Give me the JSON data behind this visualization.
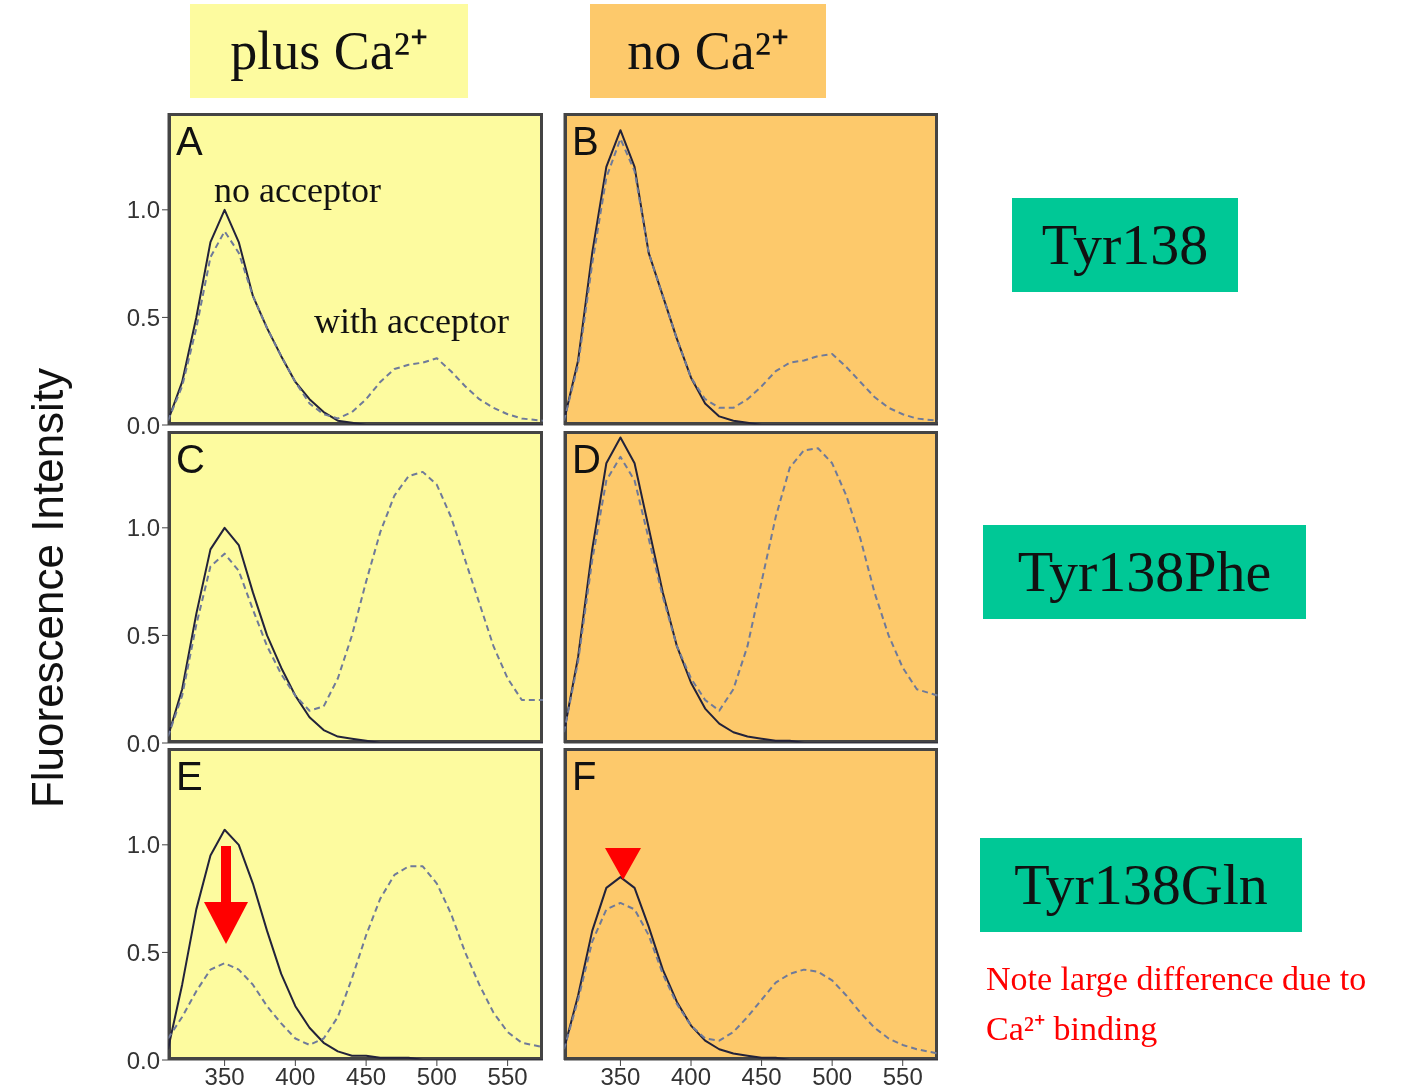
{
  "chart_data": [
    {
      "type": "line",
      "title": "plus Ca²⁺",
      "ylabel": "Fluorescence Intensity",
      "annotations": [
        "A",
        "no acceptor",
        "with acceptor"
      ],
      "x": [
        310,
        320,
        330,
        340,
        350,
        360,
        370,
        380,
        390,
        400,
        410,
        420,
        430,
        440,
        450,
        460,
        470,
        480,
        490,
        500,
        510,
        520,
        530,
        540,
        550,
        560,
        575
      ],
      "xlim": [
        310,
        575
      ],
      "ylim": [
        0,
        1.45
      ],
      "xticks": [
        350,
        400,
        450,
        500,
        550
      ],
      "yticks": [
        {
          "value": 0,
          "label": "0.0"
        },
        {
          "value": 0.5,
          "label": "0.5"
        },
        {
          "value": 1,
          "label": "1.0"
        }
      ],
      "tick_labels": "y",
      "series": [
        {
          "color": "#22223a",
          "line_style": "solid",
          "values": [
            0.02,
            0.2,
            0.5,
            0.85,
            1.0,
            0.85,
            0.6,
            0.45,
            0.32,
            0.2,
            0.12,
            0.06,
            0.02,
            0.01,
            0,
            0,
            0,
            0,
            0,
            0,
            0,
            0,
            0,
            0,
            0,
            0,
            0
          ]
        },
        {
          "color": "#6f7a99",
          "line_style": "dashed",
          "values": [
            0.02,
            0.18,
            0.45,
            0.78,
            0.9,
            0.8,
            0.6,
            0.45,
            0.32,
            0.2,
            0.1,
            0.05,
            0.03,
            0.06,
            0.12,
            0.2,
            0.26,
            0.28,
            0.29,
            0.31,
            0.25,
            0.18,
            0.12,
            0.08,
            0.05,
            0.03,
            0.02
          ]
        }
      ]
    },
    {
      "type": "line",
      "title": "no Ca²⁺",
      "annotations": [
        "B",
        "Tyr138"
      ],
      "x": [
        310,
        320,
        330,
        340,
        350,
        360,
        370,
        380,
        390,
        400,
        410,
        420,
        430,
        440,
        450,
        460,
        470,
        480,
        490,
        500,
        510,
        520,
        530,
        540,
        550,
        560,
        575
      ],
      "xlim": [
        310,
        575
      ],
      "ylim": [
        0,
        1.45
      ],
      "xticks": [
        350,
        400,
        450,
        500,
        550
      ],
      "tick_labels": false,
      "series": [
        {
          "color": "#22223a",
          "line_style": "solid",
          "values": [
            0.02,
            0.3,
            0.8,
            1.2,
            1.37,
            1.2,
            0.8,
            0.6,
            0.4,
            0.22,
            0.1,
            0.04,
            0.02,
            0.01,
            0,
            0,
            0,
            0,
            0,
            0,
            0,
            0,
            0,
            0,
            0,
            0,
            0
          ]
        },
        {
          "color": "#6f7a99",
          "line_style": "dashed",
          "values": [
            0.02,
            0.28,
            0.75,
            1.15,
            1.33,
            1.18,
            0.8,
            0.6,
            0.4,
            0.22,
            0.12,
            0.08,
            0.08,
            0.12,
            0.18,
            0.25,
            0.29,
            0.3,
            0.32,
            0.33,
            0.27,
            0.2,
            0.13,
            0.08,
            0.05,
            0.03,
            0.02
          ]
        }
      ]
    },
    {
      "type": "line",
      "annotations": [
        "C"
      ],
      "x": [
        310,
        320,
        330,
        340,
        350,
        360,
        370,
        380,
        390,
        400,
        410,
        420,
        430,
        440,
        450,
        460,
        470,
        480,
        490,
        500,
        510,
        520,
        530,
        540,
        550,
        560,
        575
      ],
      "xlim": [
        310,
        575
      ],
      "ylim": [
        0,
        1.45
      ],
      "xticks": [
        350,
        400,
        450,
        500,
        550
      ],
      "yticks": [
        {
          "value": 0,
          "label": "0.0"
        },
        {
          "value": 0.5,
          "label": "0.5"
        },
        {
          "value": 1,
          "label": "1.0"
        }
      ],
      "tick_labels": "y",
      "series": [
        {
          "color": "#22223a",
          "line_style": "solid",
          "values": [
            0.03,
            0.25,
            0.6,
            0.9,
            1.0,
            0.92,
            0.7,
            0.5,
            0.35,
            0.22,
            0.12,
            0.06,
            0.03,
            0.02,
            0.01,
            0,
            0,
            0,
            0,
            0,
            0,
            0,
            0,
            0,
            0,
            0,
            0
          ]
        },
        {
          "color": "#6f7a99",
          "line_style": "dashed",
          "values": [
            0.03,
            0.22,
            0.55,
            0.82,
            0.88,
            0.8,
            0.62,
            0.45,
            0.32,
            0.22,
            0.15,
            0.17,
            0.3,
            0.5,
            0.75,
            0.98,
            1.15,
            1.24,
            1.26,
            1.2,
            1.05,
            0.85,
            0.65,
            0.45,
            0.3,
            0.2,
            0.2
          ]
        }
      ]
    },
    {
      "type": "line",
      "annotations": [
        "D",
        "Tyr138Phe"
      ],
      "x": [
        310,
        320,
        330,
        340,
        350,
        360,
        370,
        380,
        390,
        400,
        410,
        420,
        430,
        440,
        450,
        460,
        470,
        480,
        490,
        500,
        510,
        520,
        530,
        540,
        550,
        560,
        575
      ],
      "xlim": [
        310,
        575
      ],
      "ylim": [
        0,
        1.45
      ],
      "xticks": [
        350,
        400,
        450,
        500,
        550
      ],
      "tick_labels": false,
      "series": [
        {
          "color": "#22223a",
          "line_style": "solid",
          "values": [
            0.05,
            0.4,
            0.9,
            1.3,
            1.42,
            1.3,
            1.0,
            0.7,
            0.45,
            0.28,
            0.16,
            0.09,
            0.05,
            0.03,
            0.02,
            0.01,
            0.01,
            0,
            0,
            0,
            0,
            0,
            0,
            0,
            0,
            0,
            0
          ]
        },
        {
          "color": "#6f7a99",
          "line_style": "dashed",
          "values": [
            0.05,
            0.38,
            0.85,
            1.22,
            1.33,
            1.22,
            0.95,
            0.68,
            0.45,
            0.3,
            0.2,
            0.15,
            0.25,
            0.45,
            0.75,
            1.05,
            1.28,
            1.36,
            1.37,
            1.3,
            1.15,
            0.95,
            0.7,
            0.5,
            0.35,
            0.25,
            0.22
          ]
        }
      ]
    },
    {
      "type": "line",
      "annotations": [
        "E"
      ],
      "x": [
        310,
        320,
        330,
        340,
        350,
        360,
        370,
        380,
        390,
        400,
        410,
        420,
        430,
        440,
        450,
        460,
        470,
        480,
        490,
        500,
        510,
        520,
        530,
        540,
        550,
        560,
        575
      ],
      "xlim": [
        310,
        575
      ],
      "ylim": [
        0,
        1.45
      ],
      "xticks": [
        350,
        400,
        450,
        500,
        550
      ],
      "yticks": [
        {
          "value": 0,
          "label": "0.0"
        },
        {
          "value": 0.5,
          "label": "0.5"
        },
        {
          "value": 1,
          "label": "1.0"
        }
      ],
      "series": [
        {
          "color": "#22223a",
          "line_style": "solid",
          "values": [
            0.05,
            0.35,
            0.7,
            0.95,
            1.07,
            1.0,
            0.82,
            0.6,
            0.4,
            0.25,
            0.15,
            0.08,
            0.04,
            0.02,
            0.02,
            0.01,
            0.01,
            0.01,
            0,
            0,
            0,
            0,
            0,
            0,
            0,
            0,
            0
          ]
        },
        {
          "color": "#6f7a99",
          "line_style": "dashed",
          "values": [
            0.1,
            0.2,
            0.32,
            0.42,
            0.45,
            0.42,
            0.35,
            0.25,
            0.17,
            0.1,
            0.07,
            0.1,
            0.2,
            0.38,
            0.58,
            0.75,
            0.86,
            0.9,
            0.9,
            0.82,
            0.68,
            0.5,
            0.35,
            0.22,
            0.13,
            0.08,
            0.06
          ]
        }
      ]
    },
    {
      "type": "line",
      "annotations": [
        "F",
        "Tyr138Gln",
        "Note large difference due to Ca²⁺ binding"
      ],
      "x": [
        310,
        320,
        330,
        340,
        350,
        360,
        370,
        380,
        390,
        400,
        410,
        420,
        430,
        440,
        450,
        460,
        470,
        480,
        490,
        500,
        510,
        520,
        530,
        540,
        550,
        560,
        575
      ],
      "xlim": [
        310,
        575
      ],
      "ylim": [
        0,
        1.45
      ],
      "xticks": [
        350,
        400,
        450,
        500,
        550
      ],
      "tick_labels": "x",
      "series": [
        {
          "color": "#22223a",
          "line_style": "solid",
          "values": [
            0.05,
            0.3,
            0.6,
            0.8,
            0.85,
            0.8,
            0.62,
            0.42,
            0.27,
            0.16,
            0.09,
            0.05,
            0.03,
            0.02,
            0.01,
            0.01,
            0,
            0,
            0,
            0,
            0,
            0,
            0,
            0,
            0,
            0,
            0
          ]
        },
        {
          "color": "#6f7a99",
          "line_style": "dashed",
          "values": [
            0.05,
            0.28,
            0.55,
            0.7,
            0.73,
            0.7,
            0.58,
            0.4,
            0.26,
            0.16,
            0.1,
            0.09,
            0.13,
            0.2,
            0.28,
            0.36,
            0.4,
            0.42,
            0.41,
            0.37,
            0.3,
            0.22,
            0.15,
            0.1,
            0.07,
            0.05,
            0.03
          ]
        }
      ]
    }
  ]
}
